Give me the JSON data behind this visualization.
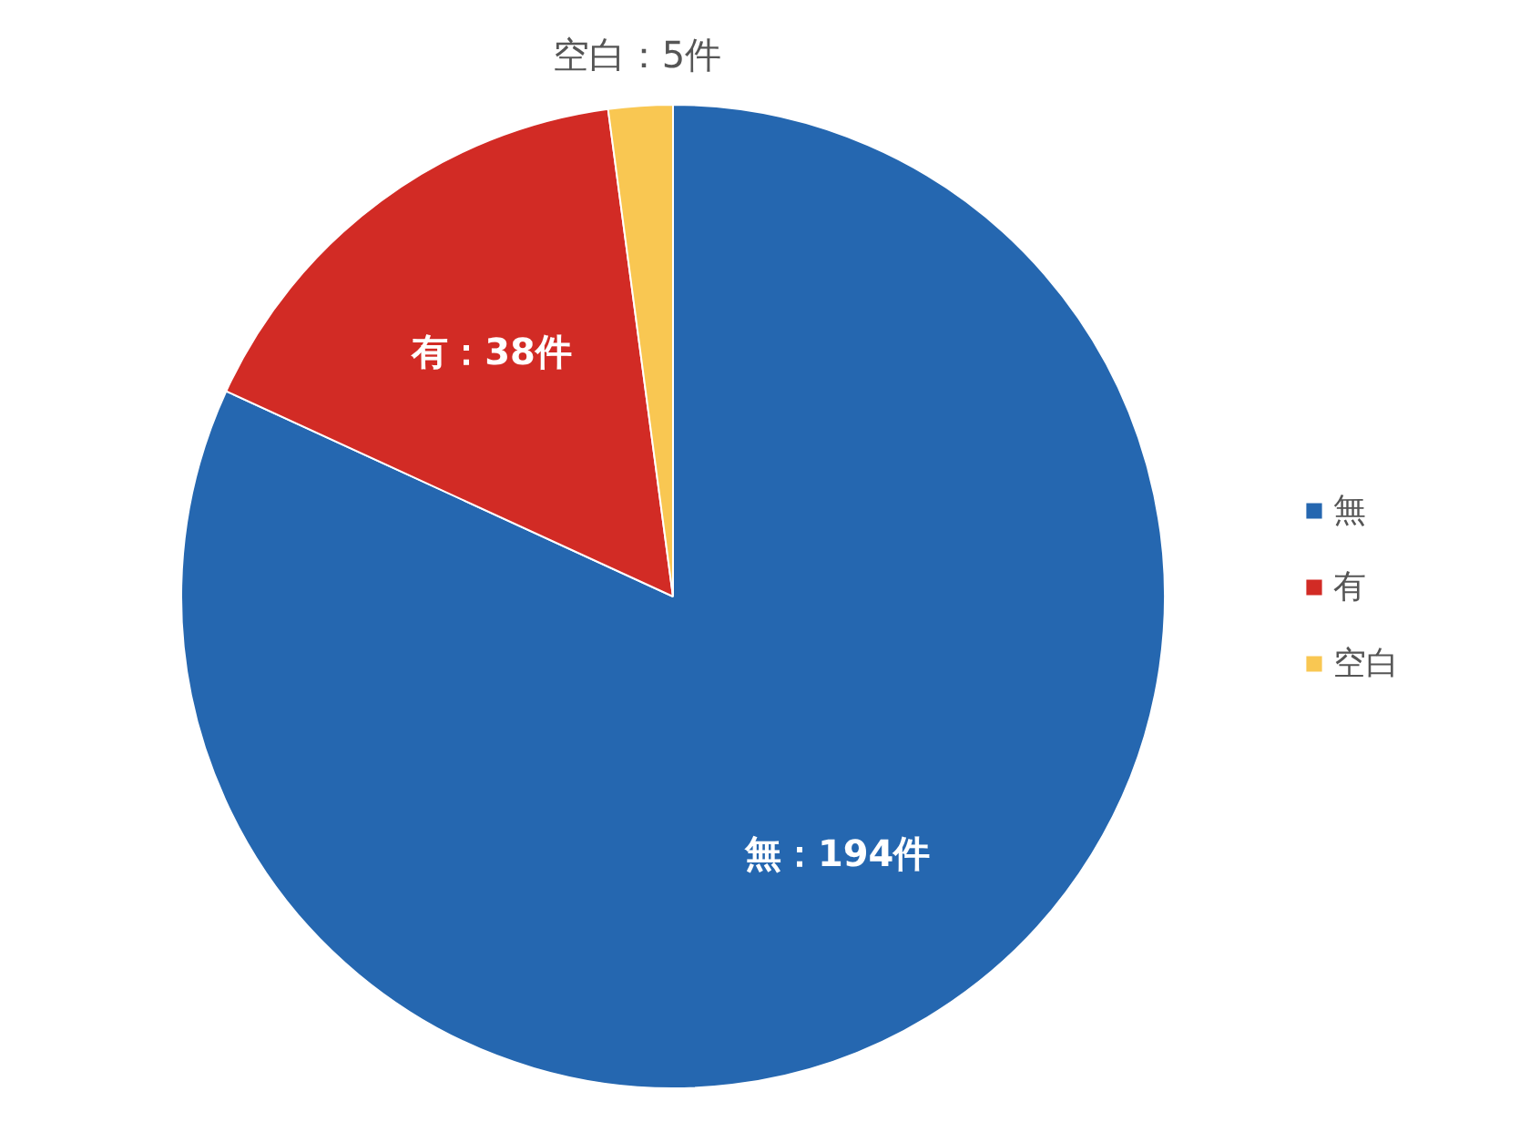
{
  "chart_data": {
    "type": "pie",
    "categories": [
      "無",
      "有",
      "空白"
    ],
    "values": [
      194,
      38,
      5
    ],
    "colors": [
      "#2567b0",
      "#d22b25",
      "#f9c752"
    ],
    "value_labels": [
      "無：194件",
      "有：38件",
      "空白：5件"
    ],
    "legend": "right"
  }
}
